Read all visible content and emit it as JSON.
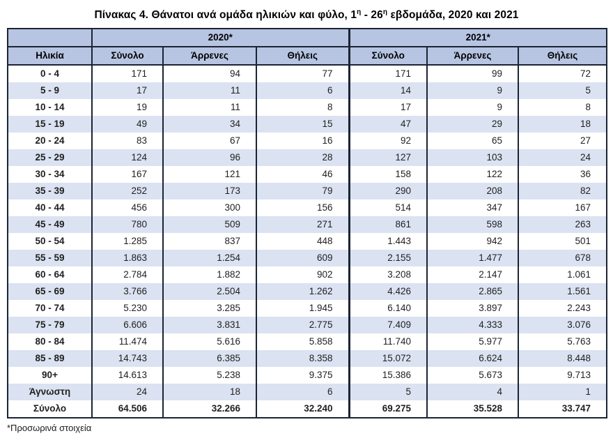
{
  "title": {
    "part1": "Πίνακας 4. Θάνατοι ανά ομάδα ηλικιών και φύλο, 1",
    "sup1": "η",
    "part2": " - 26",
    "sup2": "η",
    "part3": " εβδομάδα, 2020 και 2021"
  },
  "table": {
    "year_headers": [
      "2020*",
      "2021*"
    ],
    "col_headers": [
      "Ηλικία",
      "Σύνολο",
      "Άρρενες",
      "Θήλεις",
      "Σύνολο",
      "Άρρενες",
      "Θήλεις"
    ],
    "rows": [
      {
        "age": "0 - 4",
        "values": [
          "171",
          "94",
          "77",
          "171",
          "99",
          "72"
        ]
      },
      {
        "age": "5 - 9",
        "values": [
          "17",
          "11",
          "6",
          "14",
          "9",
          "5"
        ]
      },
      {
        "age": "10 - 14",
        "values": [
          "19",
          "11",
          "8",
          "17",
          "9",
          "8"
        ]
      },
      {
        "age": "15 - 19",
        "values": [
          "49",
          "34",
          "15",
          "47",
          "29",
          "18"
        ]
      },
      {
        "age": "20 - 24",
        "values": [
          "83",
          "67",
          "16",
          "92",
          "65",
          "27"
        ]
      },
      {
        "age": "25 - 29",
        "values": [
          "124",
          "96",
          "28",
          "127",
          "103",
          "24"
        ]
      },
      {
        "age": "30 - 34",
        "values": [
          "167",
          "121",
          "46",
          "158",
          "122",
          "36"
        ]
      },
      {
        "age": "35 - 39",
        "values": [
          "252",
          "173",
          "79",
          "290",
          "208",
          "82"
        ]
      },
      {
        "age": "40 - 44",
        "values": [
          "456",
          "300",
          "156",
          "514",
          "347",
          "167"
        ]
      },
      {
        "age": "45 - 49",
        "values": [
          "780",
          "509",
          "271",
          "861",
          "598",
          "263"
        ]
      },
      {
        "age": "50 - 54",
        "values": [
          "1.285",
          "837",
          "448",
          "1.443",
          "942",
          "501"
        ]
      },
      {
        "age": "55 - 59",
        "values": [
          "1.863",
          "1.254",
          "609",
          "2.155",
          "1.477",
          "678"
        ]
      },
      {
        "age": "60 - 64",
        "values": [
          "2.784",
          "1.882",
          "902",
          "3.208",
          "2.147",
          "1.061"
        ]
      },
      {
        "age": "65 - 69",
        "values": [
          "3.766",
          "2.504",
          "1.262",
          "4.426",
          "2.865",
          "1.561"
        ]
      },
      {
        "age": "70 - 74",
        "values": [
          "5.230",
          "3.285",
          "1.945",
          "6.140",
          "3.897",
          "2.243"
        ]
      },
      {
        "age": "75 - 79",
        "values": [
          "6.606",
          "3.831",
          "2.775",
          "7.409",
          "4.333",
          "3.076"
        ]
      },
      {
        "age": "80 - 84",
        "values": [
          "11.474",
          "5.616",
          "5.858",
          "11.740",
          "5.977",
          "5.763"
        ]
      },
      {
        "age": "85 - 89",
        "values": [
          "14.743",
          "6.385",
          "8.358",
          "15.072",
          "6.624",
          "8.448"
        ]
      },
      {
        "age": "90+",
        "values": [
          "14.613",
          "5.238",
          "9.375",
          "15.386",
          "5.673",
          "9.713"
        ]
      },
      {
        "age": "Άγνωστη",
        "values": [
          "24",
          "18",
          "6",
          "5",
          "4",
          "1"
        ]
      }
    ],
    "total_row": {
      "age": "Σύνολο",
      "values": [
        "64.506",
        "32.266",
        "32.240",
        "69.275",
        "35.528",
        "33.747"
      ]
    }
  },
  "footnote": "*Προσωρινά στοιχεία",
  "colors": {
    "header_fill": "#b7c5e2",
    "stripe_fill": "#dbe2f1",
    "border": "#1b2433",
    "text": "#1f1f1f"
  }
}
